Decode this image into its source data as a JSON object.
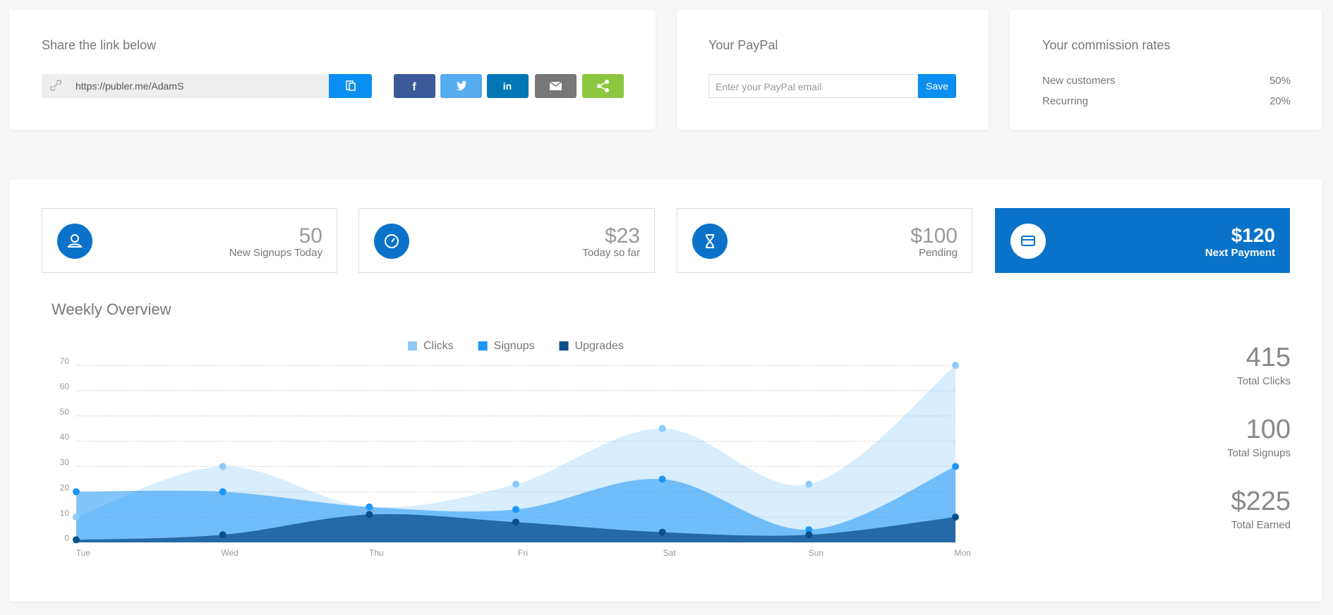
{
  "share": {
    "title": "Share the link below",
    "url": "https://publer.me/AdamS"
  },
  "paypal": {
    "title": "Your PayPal",
    "placeholder": "Enter your PayPal email",
    "button": "Save"
  },
  "commission": {
    "title": "Your commission rates",
    "rows": [
      [
        "New customers",
        "50%"
      ],
      [
        "Recurring",
        "20%"
      ]
    ]
  },
  "stats": [
    {
      "value": "50",
      "label": "New Signups Today"
    },
    {
      "value": "$23",
      "label": "Today so far"
    },
    {
      "value": "$100",
      "label": "Pending"
    },
    {
      "value": "$120",
      "label": "Next Payment"
    }
  ],
  "totals": [
    {
      "value": "415",
      "label": "Total Clicks"
    },
    {
      "value": "100",
      "label": "Total Signups"
    },
    {
      "value": "$225",
      "label": "Total Earned"
    }
  ],
  "chart_data": {
    "type": "area",
    "title": "Weekly Overview",
    "categories": [
      "Tue",
      "Wed",
      "Thu",
      "Fri",
      "Sat",
      "Sun",
      "Mon"
    ],
    "series": [
      {
        "name": "Clicks",
        "color": "#8fcbfa",
        "values": [
          10,
          30,
          14,
          23,
          45,
          23,
          70
        ]
      },
      {
        "name": "Signups",
        "color": "#1e96f5",
        "values": [
          20,
          20,
          14,
          13,
          25,
          5,
          30
        ]
      },
      {
        "name": "Upgrades",
        "color": "#0b4f8a",
        "values": [
          1,
          3,
          11,
          8,
          4,
          3,
          10
        ]
      }
    ],
    "ylim": [
      0,
      70
    ],
    "yticks": [
      0,
      10,
      20,
      30,
      40,
      50,
      60,
      70
    ],
    "grid": true
  }
}
